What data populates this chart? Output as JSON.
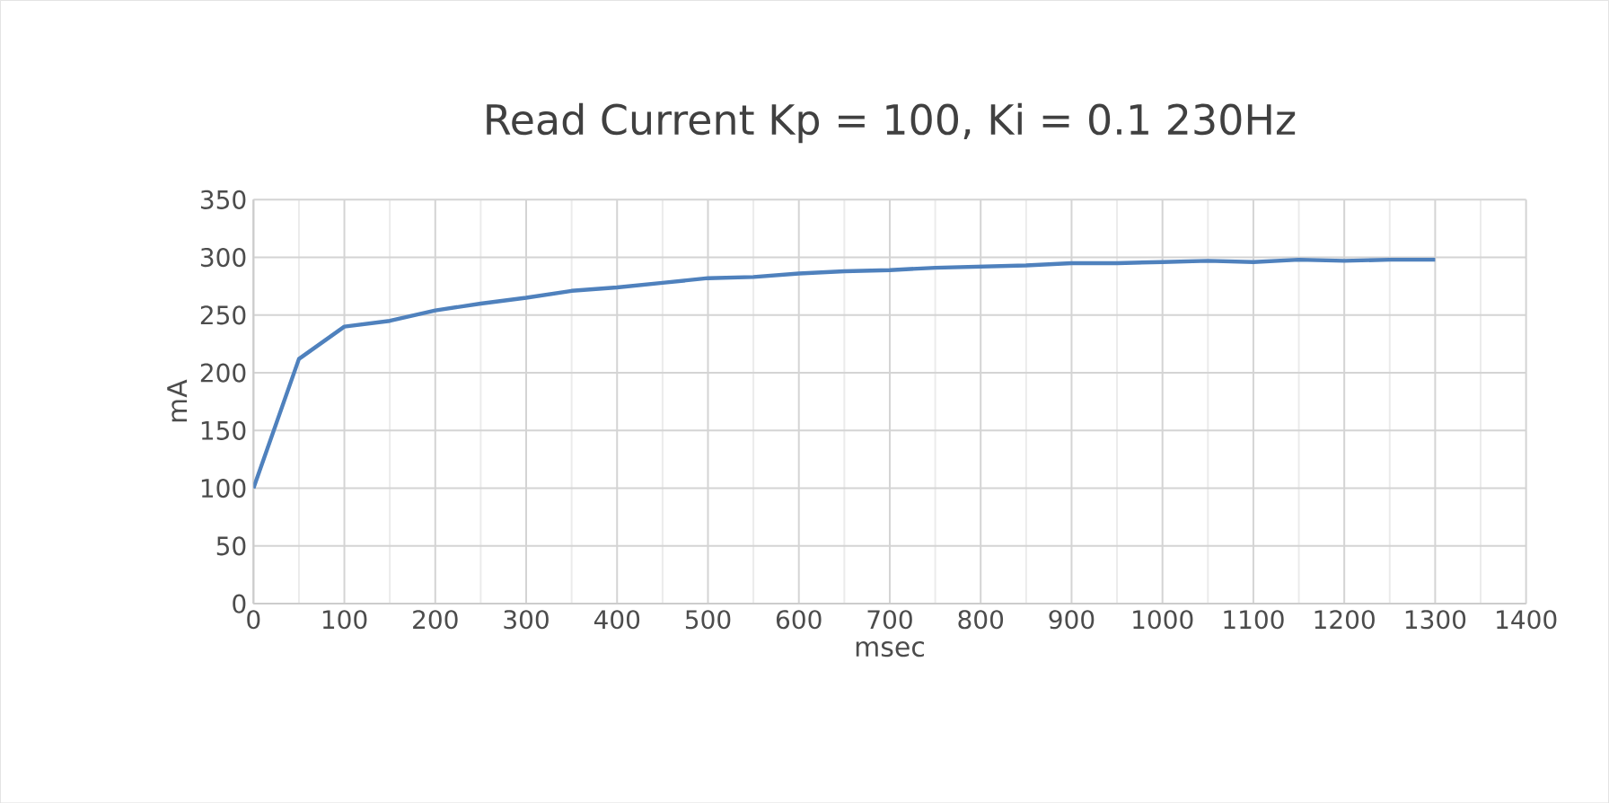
{
  "chart_data": {
    "type": "line",
    "title": "Read Current Kp = 100, Ki = 0.1 230Hz",
    "xlabel": "msec",
    "ylabel": "mA",
    "x": [
      0,
      50,
      100,
      150,
      200,
      250,
      300,
      350,
      400,
      450,
      500,
      550,
      600,
      650,
      700,
      750,
      800,
      850,
      900,
      950,
      1000,
      1050,
      1100,
      1150,
      1200,
      1250,
      1300
    ],
    "series": [
      {
        "color": "#4f81bd",
        "values": [
          100,
          212,
          240,
          245,
          254,
          260,
          265,
          271,
          274,
          278,
          282,
          283,
          286,
          288,
          289,
          291,
          292,
          293,
          295,
          295,
          296,
          297,
          296,
          298,
          297,
          298,
          298
        ]
      }
    ],
    "xlim": [
      0,
      1400
    ],
    "xticks": [
      0,
      100,
      200,
      300,
      400,
      500,
      600,
      700,
      800,
      900,
      1000,
      1100,
      1200,
      1300,
      1400
    ],
    "ylim": [
      0,
      350
    ],
    "yticks": [
      0,
      50,
      100,
      150,
      200,
      250,
      300,
      350
    ],
    "grid": true,
    "legend": false,
    "marker": "none",
    "line_style": "solid"
  }
}
